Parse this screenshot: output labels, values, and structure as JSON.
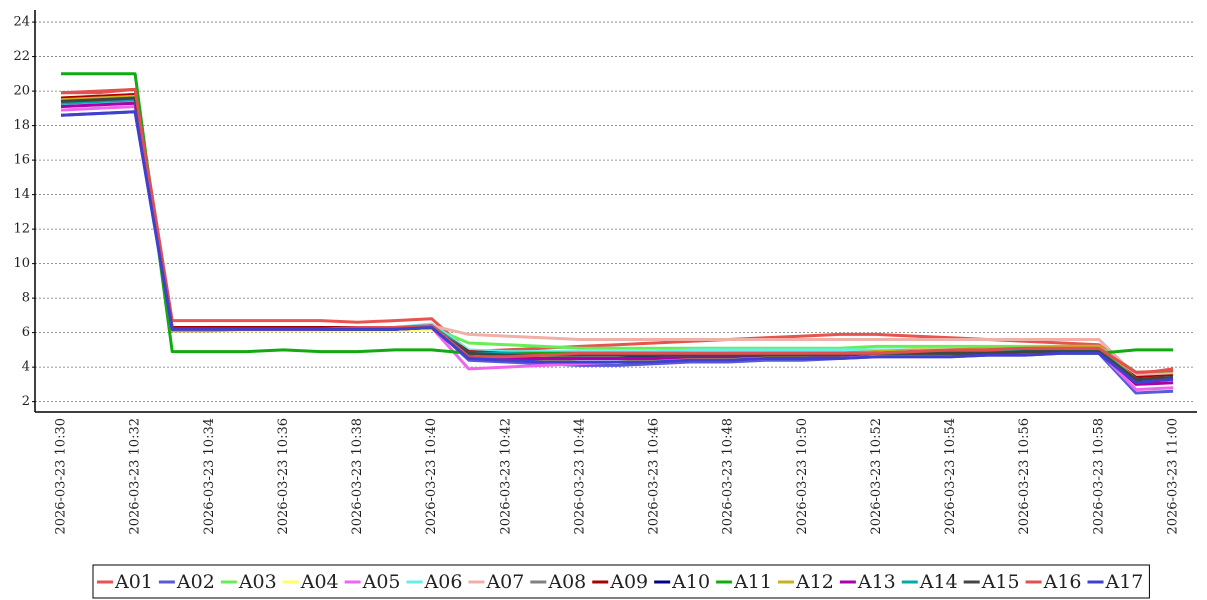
{
  "chart_data": {
    "type": "line",
    "categories": [
      "2026-03-23 10:30",
      null,
      "2026-03-23 10:32",
      null,
      "2026-03-23 10:34",
      null,
      "2026-03-23 10:36",
      null,
      "2026-03-23 10:38",
      null,
      "2026-03-23 10:40",
      null,
      "2026-03-23 10:42",
      null,
      "2026-03-23 10:44",
      null,
      "2026-03-23 10:46",
      null,
      "2026-03-23 10:48",
      null,
      "2026-03-23 10:50",
      null,
      "2026-03-23 10:52",
      null,
      "2026-03-23 10:54",
      null,
      "2026-03-23 10:56",
      null,
      "2026-03-23 10:58",
      null,
      "2026-03-23 11:00"
    ],
    "ylim": [
      1.4,
      24.7
    ],
    "yticks": [
      2,
      4,
      6,
      8,
      10,
      12,
      14,
      16,
      18,
      20,
      22,
      24
    ],
    "grid": true,
    "series": [
      {
        "name": "A01",
        "color": "#e8534f",
        "values": [
          19.9,
          19.9,
          20.1,
          6.7,
          6.7,
          6.7,
          6.7,
          6.7,
          6.6,
          6.7,
          6.8,
          4.9,
          5.0,
          5.1,
          5.2,
          5.3,
          5.4,
          5.5,
          5.6,
          5.7,
          5.8,
          5.9,
          5.9,
          5.8,
          5.7,
          5.6,
          5.5,
          5.4,
          5.3,
          3.6,
          3.9
        ]
      },
      {
        "name": "A02",
        "color": "#5a5ad8",
        "values": [
          18.6,
          18.7,
          18.8,
          6.2,
          6.3,
          6.3,
          6.3,
          6.3,
          6.3,
          6.3,
          6.4,
          4.4,
          4.3,
          4.2,
          4.1,
          4.1,
          4.2,
          4.3,
          4.3,
          4.4,
          4.4,
          4.5,
          4.6,
          4.6,
          4.6,
          4.7,
          4.7,
          4.8,
          4.8,
          2.5,
          2.6
        ]
      },
      {
        "name": "A03",
        "color": "#66ee55",
        "values": [
          19.5,
          19.6,
          19.7,
          6.2,
          6.2,
          6.2,
          6.2,
          6.2,
          6.2,
          6.2,
          6.3,
          5.4,
          5.3,
          5.2,
          5.1,
          5.1,
          5.1,
          5.1,
          5.1,
          5.1,
          5.1,
          5.1,
          5.2,
          5.2,
          5.2,
          5.2,
          5.2,
          5.2,
          5.2,
          3.7,
          3.7
        ]
      },
      {
        "name": "A04",
        "color": "#ffff66",
        "values": [
          19.4,
          19.5,
          19.6,
          6.1,
          6.1,
          6.1,
          6.1,
          6.1,
          6.1,
          6.1,
          6.2,
          4.6,
          4.6,
          4.6,
          4.5,
          4.5,
          4.5,
          4.5,
          4.6,
          4.6,
          4.6,
          4.7,
          4.7,
          4.8,
          4.8,
          4.9,
          4.9,
          5.0,
          5.0,
          3.2,
          3.3
        ]
      },
      {
        "name": "A05",
        "color": "#ee66ee",
        "values": [
          18.9,
          19.0,
          19.1,
          6.2,
          6.2,
          6.2,
          6.2,
          6.2,
          6.2,
          6.2,
          6.3,
          3.9,
          4.0,
          4.1,
          4.2,
          4.3,
          4.3,
          4.4,
          4.4,
          4.5,
          4.5,
          4.6,
          4.6,
          4.7,
          4.7,
          4.8,
          4.8,
          4.9,
          4.9,
          2.7,
          2.8
        ]
      },
      {
        "name": "A06",
        "color": "#66eeee",
        "values": [
          19.2,
          19.3,
          19.4,
          6.3,
          6.3,
          6.3,
          6.3,
          6.3,
          6.3,
          6.3,
          6.5,
          5.0,
          4.9,
          4.9,
          4.9,
          4.9,
          4.9,
          5.0,
          5.0,
          5.0,
          5.0,
          5.0,
          5.0,
          5.0,
          5.0,
          5.0,
          5.0,
          5.0,
          5.0,
          3.4,
          3.5
        ]
      },
      {
        "name": "A07",
        "color": "#f0b0a8",
        "values": [
          19.6,
          19.7,
          19.8,
          6.3,
          6.3,
          6.3,
          6.3,
          6.3,
          6.3,
          6.3,
          6.4,
          5.9,
          5.8,
          5.7,
          5.6,
          5.6,
          5.6,
          5.6,
          5.6,
          5.6,
          5.6,
          5.6,
          5.6,
          5.6,
          5.6,
          5.6,
          5.6,
          5.6,
          5.6,
          3.5,
          3.6
        ]
      },
      {
        "name": "A08",
        "color": "#808080",
        "values": [
          19.3,
          19.4,
          19.5,
          6.2,
          6.2,
          6.3,
          6.3,
          6.3,
          6.3,
          6.3,
          6.4,
          4.9,
          4.8,
          4.8,
          4.8,
          4.8,
          4.8,
          4.8,
          4.8,
          4.8,
          4.8,
          4.8,
          4.9,
          4.9,
          4.9,
          4.9,
          4.9,
          5.0,
          5.0,
          3.3,
          3.4
        ]
      },
      {
        "name": "A09",
        "color": "#aa0000",
        "values": [
          19.6,
          19.7,
          19.8,
          6.3,
          6.3,
          6.3,
          6.3,
          6.3,
          6.3,
          6.3,
          6.3,
          4.9,
          4.8,
          4.7,
          4.7,
          4.7,
          4.7,
          4.7,
          4.7,
          4.8,
          4.8,
          4.8,
          4.8,
          4.9,
          4.9,
          4.9,
          4.9,
          5.0,
          5.0,
          3.4,
          3.5
        ]
      },
      {
        "name": "A10",
        "color": "#000088",
        "values": [
          19.4,
          19.5,
          19.6,
          6.2,
          6.2,
          6.2,
          6.2,
          6.2,
          6.2,
          6.2,
          6.3,
          4.7,
          4.6,
          4.5,
          4.5,
          4.5,
          4.6,
          4.6,
          4.6,
          4.7,
          4.7,
          4.7,
          4.8,
          4.8,
          4.8,
          4.8,
          4.9,
          4.9,
          4.9,
          3.2,
          3.3
        ]
      },
      {
        "name": "A11",
        "color": "#11aa11",
        "values": [
          21,
          21,
          21,
          4.9,
          4.9,
          4.9,
          5.0,
          4.9,
          4.9,
          5.0,
          5.0,
          4.8,
          4.8,
          4.8,
          4.8,
          4.8,
          4.8,
          4.8,
          4.8,
          4.8,
          4.8,
          4.8,
          4.8,
          4.8,
          4.8,
          4.8,
          4.8,
          4.8,
          4.8,
          5.0,
          5.0
        ]
      },
      {
        "name": "A12",
        "color": "#c8b020",
        "values": [
          19.5,
          19.6,
          19.7,
          6.1,
          6.1,
          6.2,
          6.2,
          6.2,
          6.2,
          6.2,
          6.3,
          4.8,
          4.6,
          4.4,
          4.3,
          4.3,
          4.4,
          4.5,
          4.5,
          4.6,
          4.7,
          4.8,
          4.9,
          5.0,
          5.0,
          5.1,
          5.1,
          5.2,
          5.2,
          3.3,
          3.4
        ]
      },
      {
        "name": "A13",
        "color": "#aa00aa",
        "values": [
          19.1,
          19.2,
          19.3,
          6.2,
          6.2,
          6.2,
          6.2,
          6.2,
          6.2,
          6.2,
          6.3,
          4.5,
          4.5,
          4.5,
          4.5,
          4.5,
          4.5,
          4.6,
          4.6,
          4.7,
          4.7,
          4.8,
          4.8,
          4.9,
          4.9,
          5.0,
          5.0,
          5.0,
          5.0,
          3.0,
          3.1
        ]
      },
      {
        "name": "A14",
        "color": "#00aaaa",
        "values": [
          19.3,
          19.4,
          19.5,
          6.2,
          6.2,
          6.2,
          6.2,
          6.2,
          6.2,
          6.2,
          6.4,
          4.8,
          4.8,
          4.7,
          4.7,
          4.7,
          4.7,
          4.7,
          4.8,
          4.8,
          4.8,
          4.8,
          4.8,
          4.9,
          4.9,
          4.9,
          5.0,
          5.0,
          5.0,
          3.3,
          3.4
        ]
      },
      {
        "name": "A15",
        "color": "#444444",
        "values": [
          19.4,
          19.5,
          19.6,
          6.2,
          6.2,
          6.2,
          6.2,
          6.2,
          6.2,
          6.2,
          6.3,
          4.8,
          4.7,
          4.7,
          4.7,
          4.7,
          4.7,
          4.7,
          4.7,
          4.7,
          4.7,
          4.7,
          4.8,
          4.8,
          4.8,
          4.8,
          4.9,
          4.9,
          4.9,
          3.3,
          3.4
        ]
      },
      {
        "name": "A16",
        "color": "#e05050",
        "values": [
          19.9,
          20.0,
          20.1,
          6.2,
          6.2,
          6.2,
          6.2,
          6.2,
          6.3,
          6.3,
          6.4,
          4.6,
          4.6,
          4.7,
          4.8,
          4.8,
          4.8,
          4.8,
          4.8,
          4.8,
          4.8,
          4.8,
          4.8,
          4.9,
          5.0,
          5.0,
          5.1,
          5.1,
          5.1,
          3.7,
          3.8
        ]
      },
      {
        "name": "A17",
        "color": "#4040d0",
        "values": [
          18.6,
          18.7,
          18.8,
          6.2,
          6.2,
          6.2,
          6.2,
          6.2,
          6.2,
          6.2,
          6.3,
          4.5,
          4.4,
          4.3,
          4.3,
          4.3,
          4.3,
          4.4,
          4.4,
          4.5,
          4.5,
          4.5,
          4.6,
          4.6,
          4.6,
          4.7,
          4.7,
          4.8,
          4.8,
          3.1,
          3.3
        ]
      }
    ]
  }
}
